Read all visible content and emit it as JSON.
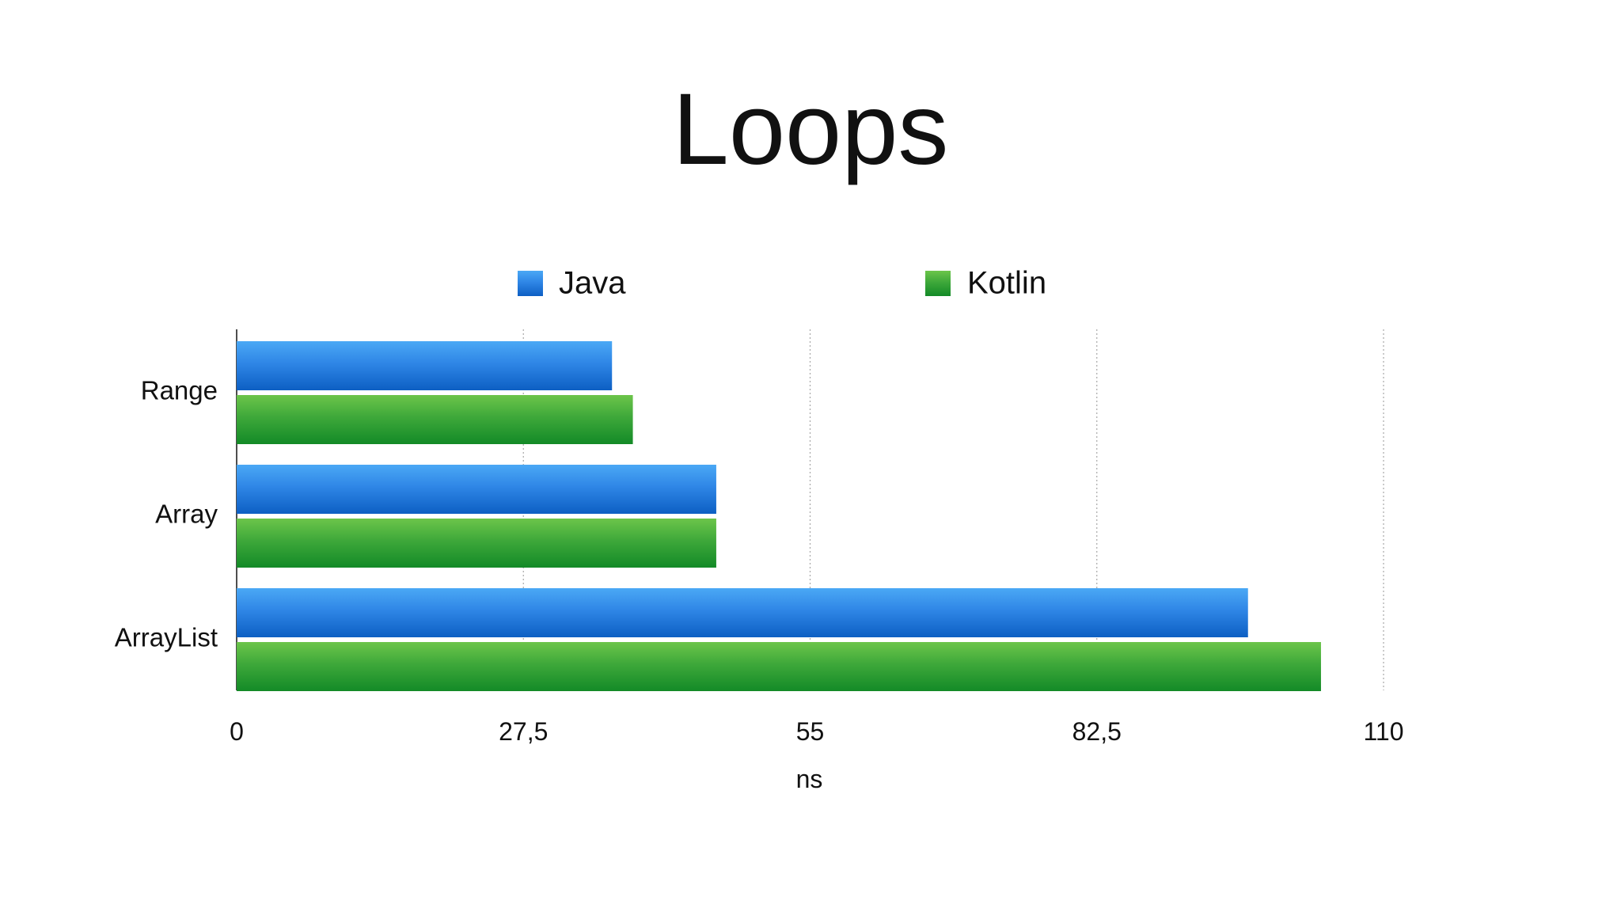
{
  "chart_data": {
    "type": "bar",
    "orientation": "horizontal",
    "title": "Loops",
    "xlabel": "ns",
    "ylabel": "",
    "categories": [
      "Range",
      "Array",
      "ArrayList"
    ],
    "series": [
      {
        "name": "Java",
        "values": [
          36,
          46,
          97
        ],
        "color": "#1f78d8"
      },
      {
        "name": "Kotlin",
        "values": [
          38,
          46,
          104
        ],
        "color": "#2a9a33"
      }
    ],
    "xlim": [
      0,
      110
    ],
    "ticks": [
      0,
      27.5,
      55,
      82.5,
      110
    ],
    "tick_labels": [
      "0",
      "27,5",
      "55",
      "82,5",
      "110"
    ],
    "grid": true,
    "legend_position": "top"
  }
}
